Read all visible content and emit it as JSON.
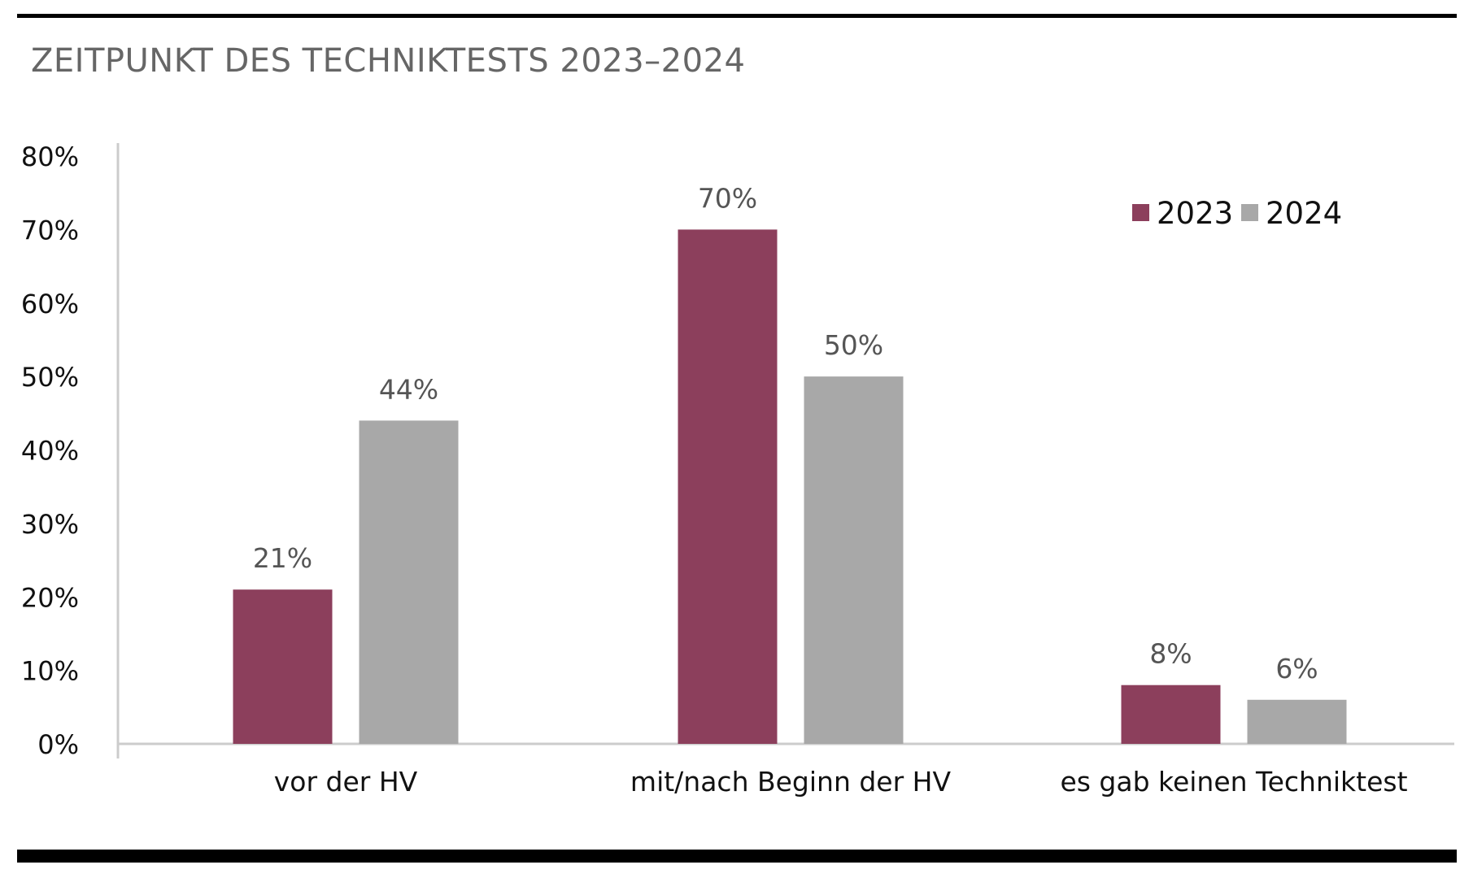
{
  "title": "ZEITPUNKT DES TECHNIKTESTS 2023–2024",
  "colors": {
    "series_2023": "#8c3f5c",
    "series_2024": "#a8a8a8",
    "axis": "#cccccc",
    "rule": "#000000"
  },
  "chart_data": {
    "type": "bar",
    "title": "ZEITPUNKT DES TECHNIKTESTS 2023–2024",
    "xlabel": "",
    "ylabel": "",
    "categories": [
      "vor der HV",
      "mit/nach Beginn der HV",
      "es gab keinen Techniktest"
    ],
    "series": [
      {
        "name": "2023",
        "values": [
          21,
          70,
          8
        ],
        "labels": [
          "21%",
          "70%",
          "8%"
        ],
        "color": "#8c3f5c"
      },
      {
        "name": "2024",
        "values": [
          44,
          50,
          6
        ],
        "labels": [
          "44%",
          "50%",
          "6%"
        ],
        "color": "#a8a8a8"
      }
    ],
    "ylim": [
      0,
      80
    ],
    "yticks": [
      0,
      10,
      20,
      30,
      40,
      50,
      60,
      70,
      80
    ],
    "ytick_labels": [
      "0%",
      "10%",
      "20%",
      "30%",
      "40%",
      "50%",
      "60%",
      "70%",
      "80%"
    ],
    "grid": false,
    "legend": "top-right"
  }
}
